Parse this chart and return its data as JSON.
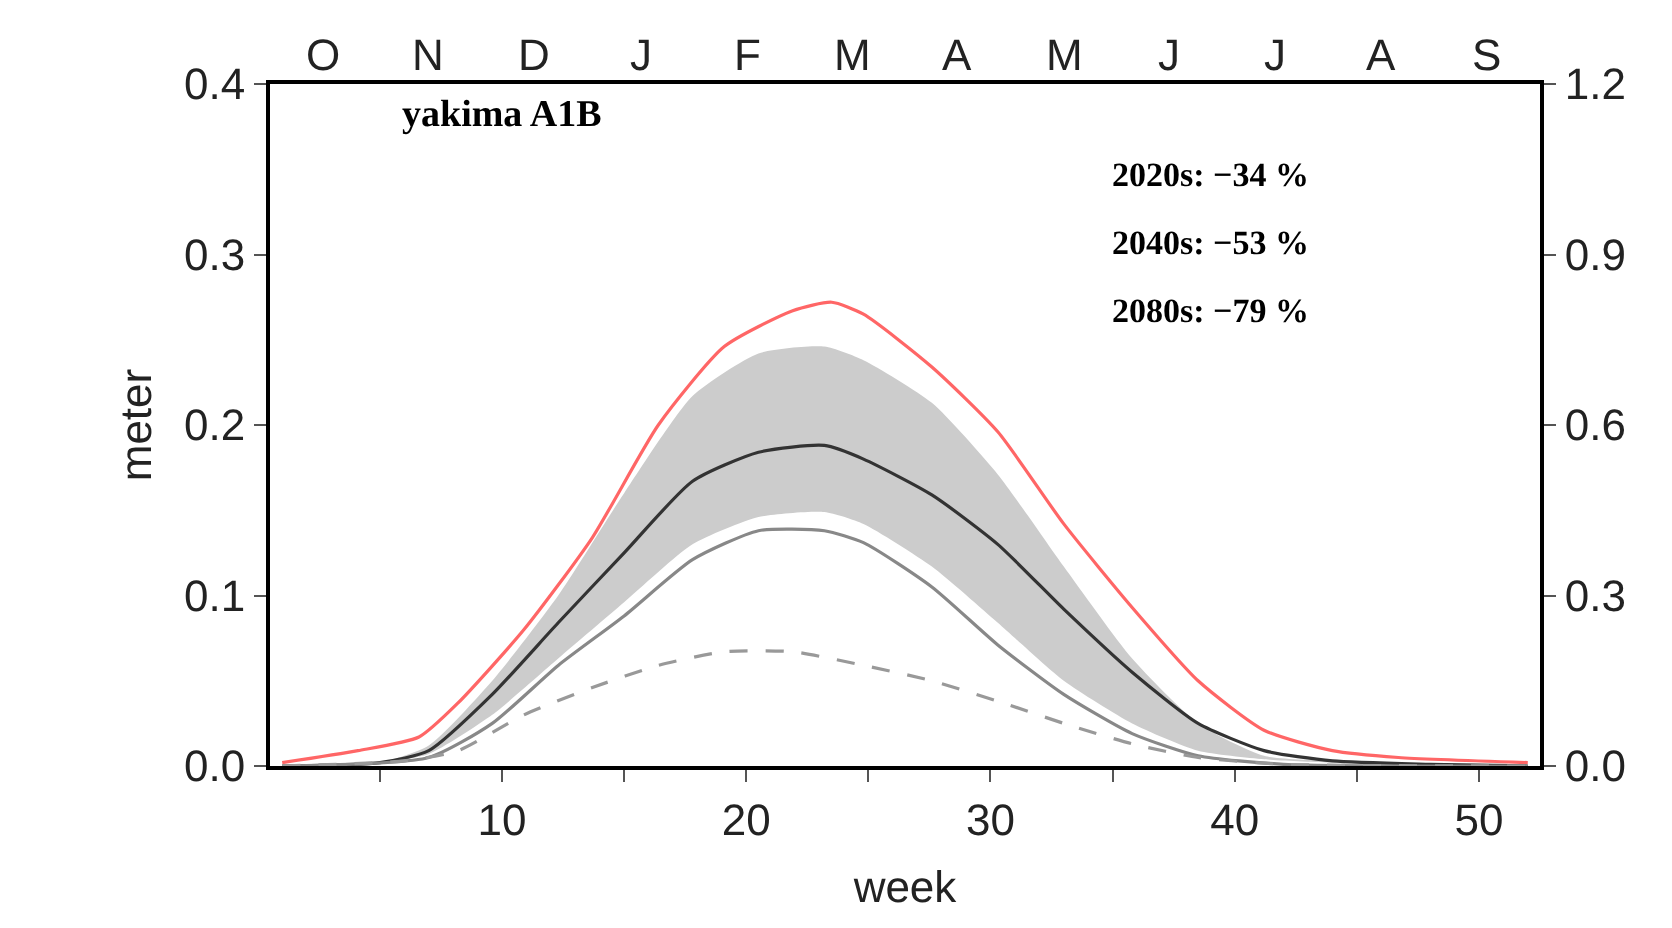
{
  "chart_data": {
    "type": "line",
    "title": "yakima A1B",
    "xlabel": "week",
    "ylabel": "meter",
    "xlim": [
      0.5,
      52.5
    ],
    "xticks": [
      {
        "value": 5,
        "label": null
      },
      10,
      {
        "value": 15,
        "label": null
      },
      20,
      {
        "value": 25,
        "label": null
      },
      30,
      {
        "value": 35,
        "label": null
      },
      40,
      {
        "value": 45,
        "label": null
      },
      50
    ],
    "ylim": [
      0,
      0.4
    ],
    "yticks": [
      {
        "value": 0,
        "label": "0.0"
      },
      0.1,
      0.2,
      0.3,
      0.4
    ],
    "y2lim": [
      0,
      1.2
    ],
    "y2ticks": [
      {
        "value": 0,
        "label": "0.0"
      },
      0.3,
      0.6,
      0.9,
      1.2
    ],
    "marker": "none",
    "annotations": [
      "2020s: −34 %",
      "2040s: −53 %",
      "2080s: −79 %",
      "O",
      "N",
      "D",
      "J",
      "F",
      "M",
      "A",
      "M",
      "J",
      "J",
      "A",
      "S"
    ],
    "series": [
      {
        "color": "#ff6666",
        "line_style": "solid",
        "x": [
          1,
          4.1,
          6.6,
          8.2,
          10.9,
          13.7,
          16.4,
          19.1,
          21.9,
          23.5,
          24.8,
          27.6,
          30.3,
          33,
          35.8,
          38.5,
          41.2,
          44,
          46.7,
          52
        ],
        "values": [
          0.002,
          0.009,
          0.017,
          0.037,
          0.08,
          0.134,
          0.2,
          0.246,
          0.267,
          0.272,
          0.265,
          0.234,
          0.196,
          0.142,
          0.093,
          0.05,
          0.021,
          0.009,
          0.005,
          0.002
        ]
      },
      {
        "color": "#333333",
        "line_style": "solid",
        "x": [
          1,
          5,
          7,
          9.6,
          12.3,
          15,
          17.8,
          20.5,
          23.2,
          24.8,
          27.6,
          30.3,
          33,
          35.8,
          38.5,
          41.2,
          44,
          48,
          52
        ],
        "values": [
          0,
          0.002,
          0.009,
          0.042,
          0.084,
          0.125,
          0.167,
          0.184,
          0.188,
          0.18,
          0.159,
          0.13,
          0.092,
          0.055,
          0.025,
          0.009,
          0.003,
          0.001,
          0
        ],
        "upper": [
          0,
          0.002,
          0.012,
          0.05,
          0.1,
          0.16,
          0.217,
          0.242,
          0.246,
          0.238,
          0.213,
          0.171,
          0.117,
          0.063,
          0.025,
          0.006,
          0.003,
          0.001,
          0
        ],
        "lower": [
          0,
          0.002,
          0.007,
          0.03,
          0.063,
          0.096,
          0.13,
          0.146,
          0.149,
          0.142,
          0.117,
          0.084,
          0.05,
          0.025,
          0.009,
          0.004,
          0.002,
          0.001,
          0
        ]
      },
      {
        "color": "#888888",
        "line_style": "solid",
        "x": [
          1,
          7,
          9.6,
          12.3,
          15,
          17.8,
          20.5,
          23.2,
          24.8,
          27.6,
          30.3,
          33,
          35.8,
          38.5,
          42,
          52
        ],
        "values": [
          0,
          0.005,
          0.025,
          0.059,
          0.088,
          0.121,
          0.138,
          0.138,
          0.131,
          0.105,
          0.071,
          0.042,
          0.019,
          0.006,
          0.001,
          0
        ]
      },
      {
        "color": "#999999",
        "line_style": "dashed",
        "x": [
          1,
          6,
          8.2,
          10.9,
          13.7,
          16.4,
          19.1,
          21.9,
          24.8,
          27.6,
          30.3,
          33,
          35.8,
          38.5,
          42,
          52
        ],
        "values": [
          0,
          0.003,
          0.009,
          0.03,
          0.046,
          0.059,
          0.067,
          0.067,
          0.059,
          0.05,
          0.038,
          0.025,
          0.013,
          0.005,
          0.001,
          0
        ]
      }
    ]
  }
}
